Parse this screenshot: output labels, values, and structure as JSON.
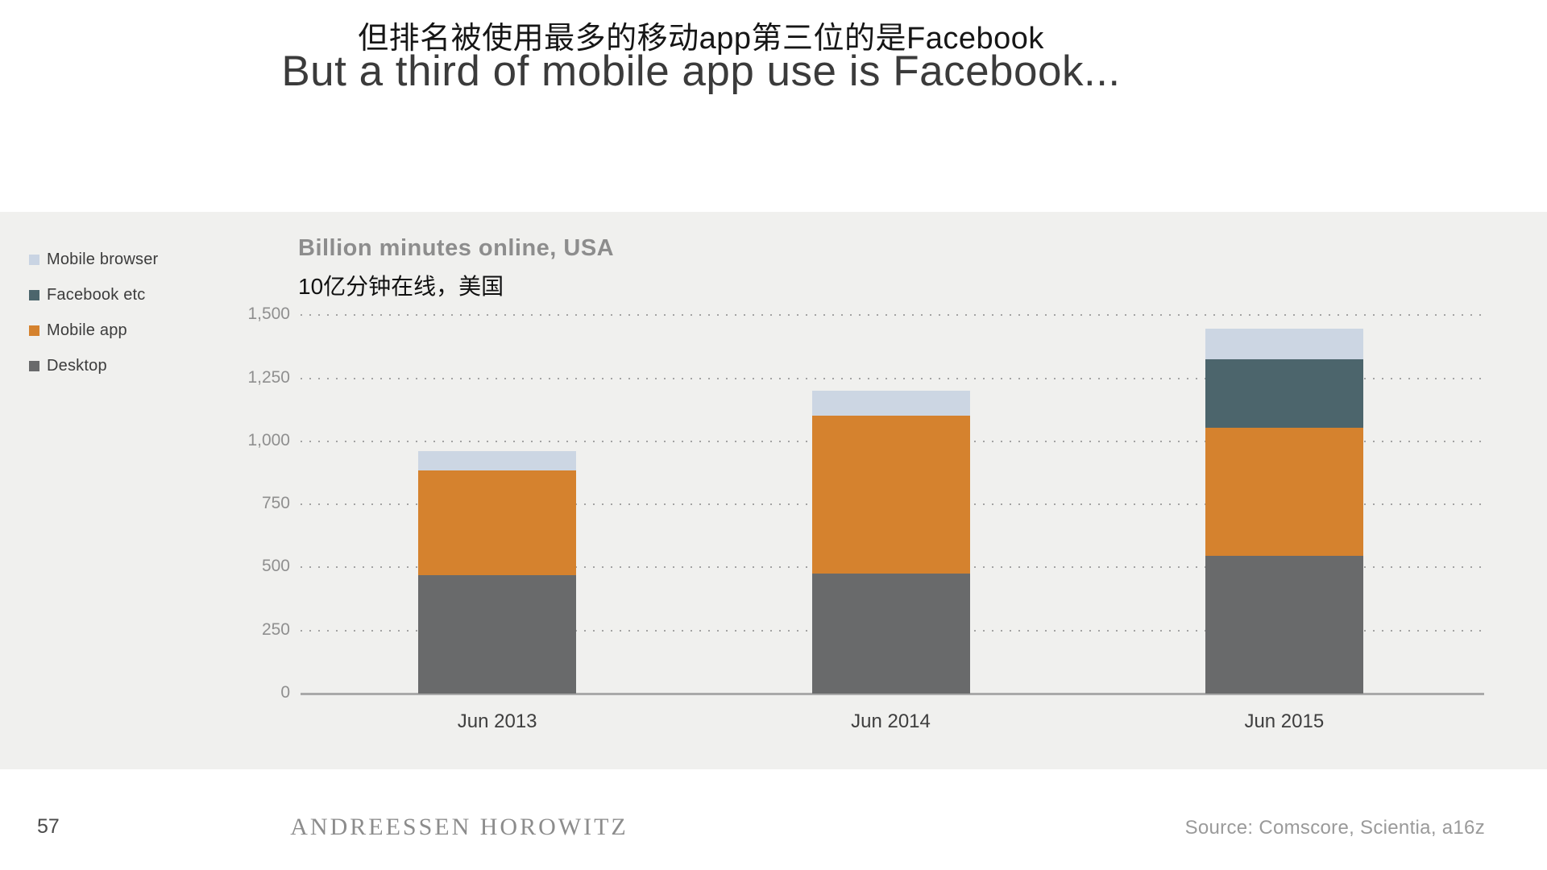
{
  "slide": {
    "title_zh": "但排名被使用最多的移动app第三位的是Facebook",
    "title_en": "But a third of mobile app use is Facebook...",
    "footer": {
      "page_number": "57",
      "brand": "ANDREESSEN HOROWITZ",
      "source": "Source: Comscore, Scientia, a16z"
    }
  },
  "chart_data": {
    "type": "bar",
    "stacked": true,
    "title": "Billion minutes online, USA",
    "subtitle_zh": "10亿分钟在线，美国",
    "categories": [
      "Jun 2013",
      "Jun 2014",
      "Jun 2015"
    ],
    "series": [
      {
        "name": "Desktop",
        "color": "#696a6b",
        "values": [
          470,
          475,
          545
        ]
      },
      {
        "name": "Mobile app",
        "color": "#d5822e",
        "values": [
          415,
          625,
          510
        ]
      },
      {
        "name": "Facebook etc",
        "color": "#4c656c",
        "values": [
          0,
          0,
          270
        ]
      },
      {
        "name": "Mobile browser",
        "color": "#ccd6e3",
        "values": [
          75,
          100,
          120
        ]
      }
    ],
    "totals": [
      960,
      1200,
      1445
    ],
    "legend": [
      {
        "label": "Mobile browser",
        "color": "#c9d4e3"
      },
      {
        "label": "Facebook etc",
        "color": "#4c656c"
      },
      {
        "label": "Mobile app",
        "color": "#d5822e"
      },
      {
        "label": "Desktop",
        "color": "#696a6b"
      }
    ],
    "xlabel": "",
    "ylabel": "",
    "ylim": [
      0,
      1500
    ],
    "ytick_interval": 250,
    "ytick_labels": [
      "0",
      "250",
      "500",
      "750",
      "1,000",
      "1,250",
      "1,500"
    ],
    "grid": "horizontal dotted",
    "legend_position": "left"
  }
}
